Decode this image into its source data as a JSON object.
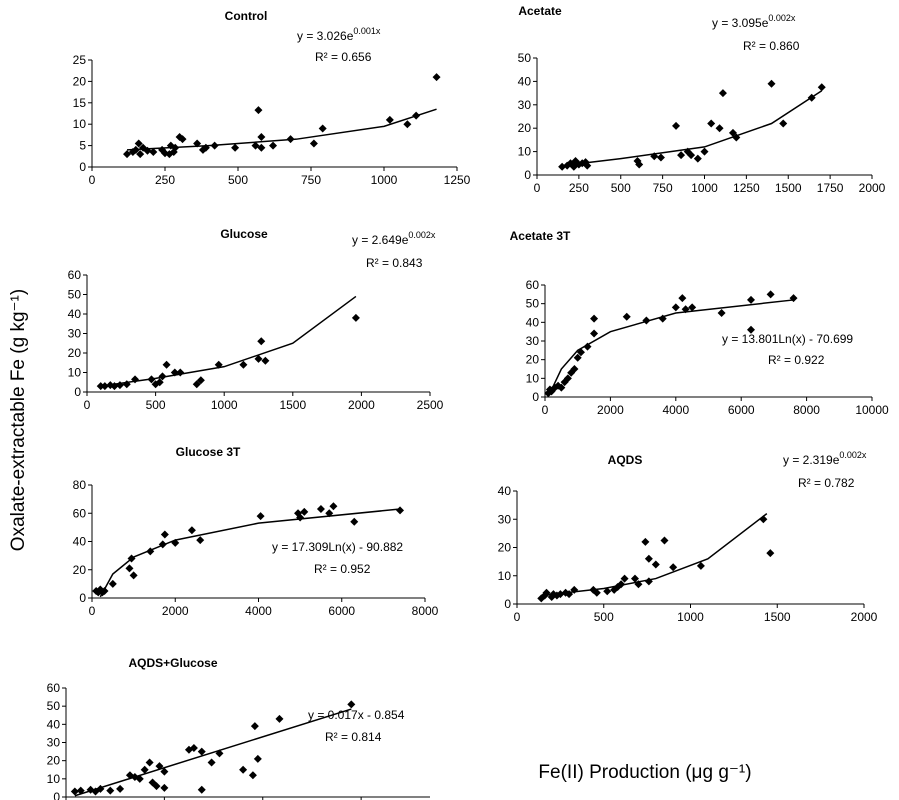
{
  "ylabel": "Oxalate-extractable Fe (g kg⁻¹)",
  "xlabel": "Fe(II) Production (μg g⁻¹)",
  "chart_data": [
    {
      "type": "scatter",
      "title": "Control",
      "equation": "y = 3.026e",
      "equation_exponent": "0.001x",
      "r_squared": "R² = 0.656",
      "x": [
        120,
        140,
        150,
        160,
        165,
        175,
        190,
        210,
        240,
        250,
        265,
        270,
        280,
        285,
        300,
        310,
        360,
        380,
        390,
        420,
        490,
        570,
        560,
        580,
        580,
        620,
        680,
        760,
        790,
        1020,
        1080,
        1110,
        1180
      ],
      "values": [
        3,
        3.5,
        4,
        5.5,
        3,
        4.5,
        3.8,
        3.5,
        4,
        3.2,
        3,
        5,
        3.5,
        4.5,
        7,
        6.5,
        5.5,
        4,
        4.5,
        5,
        4.5,
        13.3,
        5,
        4.5,
        7,
        5,
        6.5,
        5.5,
        9,
        11,
        10,
        12,
        21
      ],
      "fit": {
        "x": [
          120,
          400,
          700,
          1000,
          1180
        ],
        "y": [
          4,
          5,
          6.5,
          9.5,
          13.5
        ]
      },
      "xlim": [
        0,
        1250
      ],
      "xticks": [
        0,
        250,
        500,
        750,
        1000,
        1250
      ],
      "ylim": [
        0,
        25
      ],
      "yticks": [
        0,
        5,
        10,
        15,
        20,
        25
      ],
      "color": "#000000"
    },
    {
      "type": "scatter",
      "title": "Acetate",
      "equation": "y = 3.095e",
      "equation_exponent": "0.002x",
      "r_squared": "R² = 0.860",
      "x": [
        150,
        180,
        200,
        220,
        230,
        250,
        270,
        290,
        300,
        600,
        610,
        700,
        740,
        830,
        860,
        900,
        920,
        960,
        1000,
        1040,
        1090,
        1110,
        1170,
        1190,
        1400,
        1470,
        1640,
        1700
      ],
      "values": [
        3.5,
        4,
        5,
        3.5,
        6,
        4.5,
        5,
        5.5,
        4,
        6,
        4.5,
        8,
        7.5,
        21,
        8.5,
        10,
        8.5,
        7,
        10,
        22,
        20,
        35,
        18,
        16,
        39,
        22,
        33,
        37.5
      ],
      "fit": {
        "x": [
          150,
          500,
          1000,
          1400,
          1700
        ],
        "y": [
          4,
          7,
          12,
          22,
          36
        ]
      },
      "xlim": [
        0,
        2000
      ],
      "xticks": [
        0,
        250,
        500,
        750,
        1000,
        1250,
        1500,
        1750,
        2000
      ],
      "ylim": [
        0,
        50
      ],
      "yticks": [
        0,
        10,
        20,
        30,
        40,
        50
      ],
      "color": "#000000"
    },
    {
      "type": "scatter",
      "title": "Glucose",
      "equation": "y = 2.649e",
      "equation_exponent": "0.002x",
      "r_squared": "R² = 0.843",
      "x": [
        100,
        130,
        170,
        200,
        240,
        290,
        350,
        470,
        500,
        530,
        550,
        580,
        640,
        680,
        800,
        830,
        960,
        1140,
        1250,
        1270,
        1300,
        1960
      ],
      "values": [
        3,
        3,
        3.5,
        3,
        3.5,
        4,
        6.5,
        6.5,
        4,
        5,
        8,
        14,
        10,
        10,
        4,
        6,
        14,
        14,
        17,
        26,
        16,
        38
      ],
      "fit": {
        "x": [
          100,
          500,
          1000,
          1500,
          1960
        ],
        "y": [
          3,
          7,
          13,
          25,
          49
        ]
      },
      "xlim": [
        0,
        2500
      ],
      "xticks": [
        0,
        500,
        1000,
        1500,
        2000,
        2500
      ],
      "ylim": [
        0,
        60
      ],
      "yticks": [
        0,
        10,
        20,
        30,
        40,
        50,
        60
      ],
      "color": "#000000"
    },
    {
      "type": "scatter",
      "title": "Acetate 3T",
      "equation": "y = 13.801Ln(x) - 70.699",
      "r_squared": "R² = 0.922",
      "x": [
        100,
        150,
        200,
        300,
        400,
        500,
        600,
        700,
        800,
        900,
        1000,
        1100,
        1300,
        1500,
        1500,
        2500,
        3100,
        3600,
        4000,
        4200,
        4300,
        4500,
        5400,
        6300,
        6300,
        6900,
        7600
      ],
      "values": [
        2,
        4,
        3,
        5,
        6,
        5,
        8,
        10,
        13,
        15,
        21,
        24,
        27,
        34,
        42,
        43,
        41,
        42,
        48,
        53,
        47,
        48,
        45,
        52,
        36,
        55,
        53
      ],
      "fit": {
        "x": [
          150,
          500,
          1000,
          2000,
          4000,
          7600
        ],
        "y": [
          2,
          15,
          25,
          35,
          45,
          52
        ]
      },
      "xlim": [
        0,
        10000
      ],
      "xticks": [
        0,
        2000,
        4000,
        6000,
        8000,
        10000
      ],
      "ylim": [
        0,
        60
      ],
      "yticks": [
        0,
        10,
        20,
        30,
        40,
        50,
        60
      ],
      "color": "#000000"
    },
    {
      "type": "scatter",
      "title": "Glucose 3T",
      "equation": "y = 17.309Ln(x) - 90.882",
      "r_squared": "R² = 0.952",
      "x": [
        100,
        150,
        200,
        250,
        300,
        500,
        900,
        950,
        1000,
        1400,
        1700,
        1750,
        2000,
        2400,
        2600,
        4050,
        4950,
        5000,
        5100,
        5500,
        5700,
        5800,
        6300,
        7400
      ],
      "values": [
        5,
        4,
        6,
        4,
        5,
        10,
        21,
        28,
        16,
        33,
        38,
        45,
        39,
        48,
        41,
        58,
        60,
        57,
        61,
        63,
        60,
        65,
        54,
        62
      ],
      "fit": {
        "x": [
          200,
          500,
          1000,
          2000,
          4000,
          7400
        ],
        "y": [
          0.8,
          17,
          29,
          41,
          53,
          63
        ]
      },
      "xlim": [
        0,
        8000
      ],
      "xticks": [
        0,
        2000,
        4000,
        6000,
        8000
      ],
      "ylim": [
        0,
        80
      ],
      "yticks": [
        0,
        20,
        40,
        60,
        80
      ],
      "color": "#000000"
    },
    {
      "type": "scatter",
      "title": "AQDS",
      "equation": "y = 2.319e",
      "equation_exponent": "0.002x",
      "r_squared": "R² = 0.782",
      "x": [
        140,
        160,
        170,
        200,
        210,
        230,
        250,
        280,
        300,
        330,
        440,
        460,
        520,
        560,
        580,
        600,
        620,
        680,
        700,
        740,
        760,
        760,
        800,
        850,
        900,
        1060,
        1420,
        1460
      ],
      "values": [
        2,
        3,
        4,
        2.5,
        3.5,
        3,
        3.5,
        4,
        3.5,
        5,
        5,
        4,
        4.5,
        5,
        6,
        7,
        9,
        9,
        7,
        22,
        8,
        16,
        14,
        22.5,
        13,
        13.5,
        30,
        18
      ],
      "fit": {
        "x": [
          140,
          500,
          800,
          1100,
          1440
        ],
        "y": [
          3,
          5.5,
          9,
          16,
          32
        ]
      },
      "xlim": [
        0,
        2000
      ],
      "xticks": [
        0,
        500,
        1000,
        1500,
        2000
      ],
      "ylim": [
        0,
        40
      ],
      "yticks": [
        0,
        10,
        20,
        30,
        40
      ],
      "color": "#000000"
    },
    {
      "type": "scatter",
      "title": "AQDS+Glucose",
      "equation": "y = 0.017x - 0.854",
      "r_squared": "R² = 0.814",
      "x": [
        90,
        150,
        250,
        300,
        350,
        450,
        550,
        650,
        700,
        750,
        800,
        850,
        880,
        920,
        950,
        1000,
        1000,
        1250,
        1300,
        1380,
        1380,
        1480,
        1560,
        1800,
        1900,
        1950,
        1920,
        2170,
        2900
      ],
      "values": [
        3,
        3.5,
        4,
        3,
        4.5,
        3.5,
        4.5,
        12,
        11,
        10,
        15,
        19,
        8,
        6,
        17,
        14,
        5,
        26,
        27,
        25,
        4,
        19,
        24,
        15,
        12,
        21,
        39,
        43,
        51
      ],
      "fit": {
        "x": [
          90,
          2900
        ],
        "y": [
          0.68,
          48.4
        ]
      },
      "xlim": [
        0,
        3700
      ],
      "xticks": [
        0,
        1000,
        2000,
        3000
      ],
      "xtick_labels": false,
      "ylim": [
        0,
        60
      ],
      "yticks": [
        0,
        10,
        20,
        30,
        40,
        50,
        60
      ],
      "color": "#000000"
    }
  ]
}
